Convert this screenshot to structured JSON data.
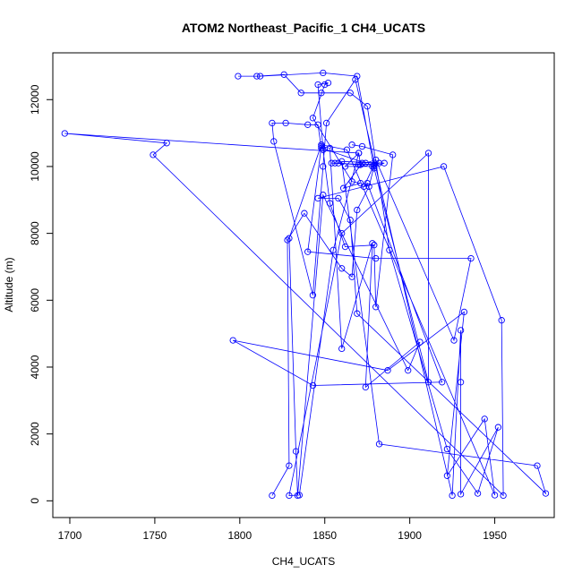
{
  "chart_data": {
    "type": "line",
    "title": "ATOM2 Northeast_Pacific_1 CH4_UCATS",
    "xlabel": "CH4_UCATS",
    "ylabel": "Altitude (m)",
    "xlim": [
      1690,
      1985
    ],
    "ylim": [
      -500,
      13400
    ],
    "xticks": [
      1700,
      1750,
      1800,
      1850,
      1900,
      1950
    ],
    "yticks": [
      0,
      2000,
      4000,
      6000,
      8000,
      10000,
      12000
    ],
    "grid": false,
    "legend": "none",
    "series": [
      {
        "points": [
          [
            1819,
            160
          ],
          [
            1829,
            1050
          ],
          [
            1828,
            7800
          ],
          [
            1838,
            8600
          ],
          [
            1860,
            6950
          ],
          [
            1866,
            6700
          ],
          [
            1869,
            8700
          ],
          [
            1876,
            9400
          ],
          [
            1879,
            10000
          ],
          [
            1882,
            10100
          ],
          [
            1870,
            10050
          ],
          [
            1858,
            10100
          ],
          [
            1856,
            10100
          ],
          [
            1854,
            10100
          ],
          [
            1879,
            10050
          ],
          [
            1873,
            9400
          ],
          [
            1875,
            9500
          ],
          [
            1919,
            3550
          ],
          [
            1843,
            3450
          ],
          [
            1796,
            4800
          ],
          [
            1887,
            3900
          ],
          [
            1932,
            5650
          ],
          [
            1922,
            750
          ],
          [
            1944,
            2450
          ],
          [
            1950,
            170
          ],
          [
            1863,
            10500
          ],
          [
            1848,
            10650
          ],
          [
            1829,
            7850
          ],
          [
            1833,
            1480
          ],
          [
            1834,
            160
          ],
          [
            1849,
            9150
          ],
          [
            1899,
            3900
          ],
          [
            1906,
            4750
          ],
          [
            1874,
            3400
          ],
          [
            1878,
            7700
          ],
          [
            1860,
            4550
          ],
          [
            1853,
            10550
          ],
          [
            1848,
            10600
          ],
          [
            1840,
            7450
          ],
          [
            1880,
            7250
          ],
          [
            1936,
            7250
          ],
          [
            1926,
            4800
          ],
          [
            1880,
            10200
          ],
          [
            1874,
            10100
          ],
          [
            1848,
            10550
          ],
          [
            1846,
            11250
          ],
          [
            1840,
            11250
          ],
          [
            1827,
            11300
          ],
          [
            1819,
            11300
          ],
          [
            1820,
            10750
          ],
          [
            1843,
            6150
          ],
          [
            1849,
            10000
          ],
          [
            1851,
            11300
          ],
          [
            1868,
            12600
          ],
          [
            1925,
            160
          ],
          [
            1930,
            5100
          ],
          [
            1930,
            3550
          ],
          [
            1930,
            200
          ],
          [
            1952,
            2200
          ],
          [
            1940,
            220
          ],
          [
            1922,
            1550
          ],
          [
            1888,
            7500
          ],
          [
            1875,
            11800
          ],
          [
            1865,
            12200
          ],
          [
            1848,
            12200
          ],
          [
            1836,
            12200
          ],
          [
            1826,
            12750
          ],
          [
            1810,
            12700
          ],
          [
            1799,
            12700
          ],
          [
            1812,
            12700
          ],
          [
            1849,
            12800
          ],
          [
            1869,
            12700
          ],
          [
            1879,
            9950
          ],
          [
            1911,
            3550
          ],
          [
            1911,
            10400
          ],
          [
            1860,
            8000
          ],
          [
            1829,
            160
          ],
          [
            1835,
            170
          ],
          [
            1855,
            7500
          ],
          [
            1870,
            10400
          ],
          [
            1697,
            10990
          ],
          [
            1757,
            10700
          ],
          [
            1749,
            10350
          ],
          [
            1955,
            160
          ],
          [
            1954,
            5400
          ],
          [
            1920,
            10000
          ],
          [
            1846,
            9050
          ],
          [
            1858,
            9050
          ],
          [
            1865,
            8400
          ],
          [
            1869,
            5600
          ],
          [
            1980,
            220
          ],
          [
            1975,
            1050
          ],
          [
            1882,
            1700
          ],
          [
            1860,
            10150
          ],
          [
            1885,
            10100
          ],
          [
            1878,
            10000
          ],
          [
            1862,
            10000
          ],
          [
            1870,
            10400
          ],
          [
            1871,
            10050
          ],
          [
            1872,
            10100
          ],
          [
            1861,
            9350
          ],
          [
            1871,
            9500
          ],
          [
            1866,
            9550
          ],
          [
            1843,
            11450
          ],
          [
            1850,
            12450
          ],
          [
            1852,
            12500
          ],
          [
            1846,
            12450
          ],
          [
            1849,
            10500
          ],
          [
            1853,
            8900
          ],
          [
            1862,
            7600
          ],
          [
            1879,
            7650
          ],
          [
            1880,
            5800
          ],
          [
            1890,
            10350
          ],
          [
            1872,
            10600
          ],
          [
            1866,
            10650
          ]
        ]
      }
    ],
    "colors": {
      "series": "#0000ff",
      "axes": "#000000",
      "background": "#ffffff"
    }
  }
}
